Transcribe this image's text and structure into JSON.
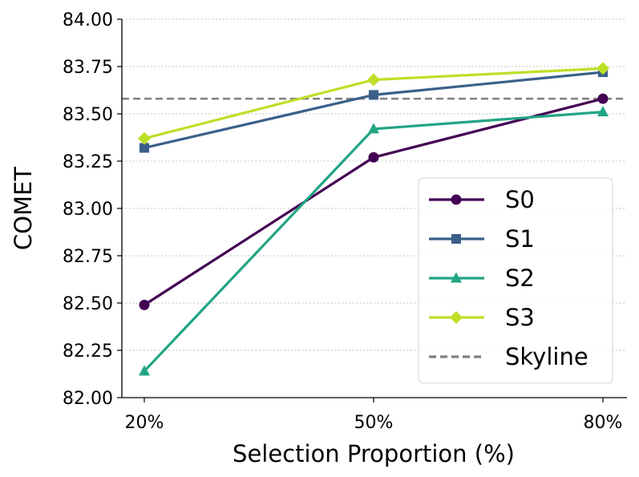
{
  "chart_data": {
    "type": "line",
    "title": "",
    "xlabel": "Selection Proportion (%)",
    "ylabel": "COMET",
    "categories": [
      "20%",
      "50%",
      "80%"
    ],
    "ylim": [
      82.0,
      84.0
    ],
    "yticks": [
      "82.00",
      "82.25",
      "82.50",
      "82.75",
      "83.00",
      "83.25",
      "83.50",
      "83.75",
      "84.00"
    ],
    "grid": "horizontal-dotted",
    "legend_position": "lower-right",
    "series": [
      {
        "name": "S0",
        "values": [
          82.49,
          83.27,
          83.58
        ],
        "color": "#440154",
        "marker": "circle"
      },
      {
        "name": "S1",
        "values": [
          83.32,
          83.6,
          83.72
        ],
        "color": "#3b5f8a",
        "marker": "square"
      },
      {
        "name": "S2",
        "values": [
          82.14,
          83.42,
          83.51
        ],
        "color": "#21a585",
        "marker": "triangle"
      },
      {
        "name": "S3",
        "values": [
          83.37,
          83.68,
          83.74
        ],
        "color": "#bddf26",
        "marker": "diamond"
      }
    ],
    "reference_line": {
      "name": "Skyline",
      "value": 83.58,
      "color": "#808080",
      "style": "dashed"
    }
  }
}
